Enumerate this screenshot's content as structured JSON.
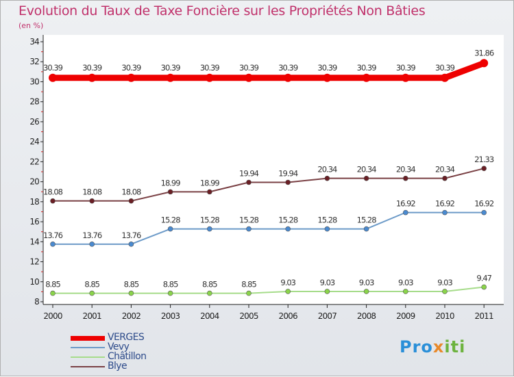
{
  "header": {
    "title": "Evolution du Taux de Taxe Foncière sur les Propriétés Non Bâties",
    "unit": "(en %)"
  },
  "brand": {
    "part1": "Pro",
    "part2": "x",
    "part3": "iti"
  },
  "chart_data": {
    "type": "line",
    "title": "Evolution du Taux de Taxe Foncière sur les Propriétés Non Bâties",
    "ylabel": "(en %)",
    "xlabel": "",
    "categories": [
      "2000",
      "2001",
      "2002",
      "2003",
      "2004",
      "2005",
      "2006",
      "2007",
      "2008",
      "2009",
      "2010",
      "2011"
    ],
    "ylim": [
      8,
      34
    ],
    "yticks": [
      8,
      10,
      12,
      14,
      16,
      18,
      20,
      22,
      24,
      26,
      28,
      30,
      32,
      34
    ],
    "grid": false,
    "legend_position": "bottom-left",
    "series": [
      {
        "name": "VERGES",
        "color": "#ee0000",
        "emphasis": true,
        "values": [
          30.39,
          30.39,
          30.39,
          30.39,
          30.39,
          30.39,
          30.39,
          30.39,
          30.39,
          30.39,
          30.39,
          31.86
        ],
        "labels": [
          "30.39",
          "30.39",
          "30.39",
          "30.39",
          "30.39",
          "30.39",
          "30.39",
          "30.39",
          "30.39",
          "30.39",
          "30.39",
          "31.86"
        ]
      },
      {
        "name": "Vevy",
        "color": "#6c9ac8",
        "marker": "#4a8ad0",
        "values": [
          13.76,
          13.76,
          13.76,
          15.28,
          15.28,
          15.28,
          15.28,
          15.28,
          15.28,
          16.92,
          16.92,
          16.92
        ],
        "labels": [
          "13.76",
          "13.76",
          "13.76",
          "15.28",
          "15.28",
          "15.28",
          "15.28",
          "15.28",
          "15.28",
          "16.92",
          "16.92",
          "16.92"
        ]
      },
      {
        "name": "Châtillon",
        "color": "#a6dc8a",
        "marker": "#8ad44a",
        "values": [
          8.85,
          8.85,
          8.85,
          8.85,
          8.85,
          8.85,
          9.03,
          9.03,
          9.03,
          9.03,
          9.03,
          9.47
        ],
        "labels": [
          "8.85",
          "8.85",
          "8.85",
          "8.85",
          "8.85",
          "8.85",
          "9.03",
          "9.03",
          "9.03",
          "9.03",
          "9.03",
          "9.47"
        ]
      },
      {
        "name": "Blye",
        "color": "#7a4044",
        "marker": "#6a1e24",
        "values": [
          18.08,
          18.08,
          18.08,
          18.99,
          18.99,
          19.94,
          19.94,
          20.34,
          20.34,
          20.34,
          20.34,
          21.33
        ],
        "labels": [
          "18.08",
          "18.08",
          "18.08",
          "18.99",
          "18.99",
          "19.94",
          "19.94",
          "20.34",
          "20.34",
          "20.34",
          "20.34",
          "21.33"
        ]
      }
    ]
  }
}
